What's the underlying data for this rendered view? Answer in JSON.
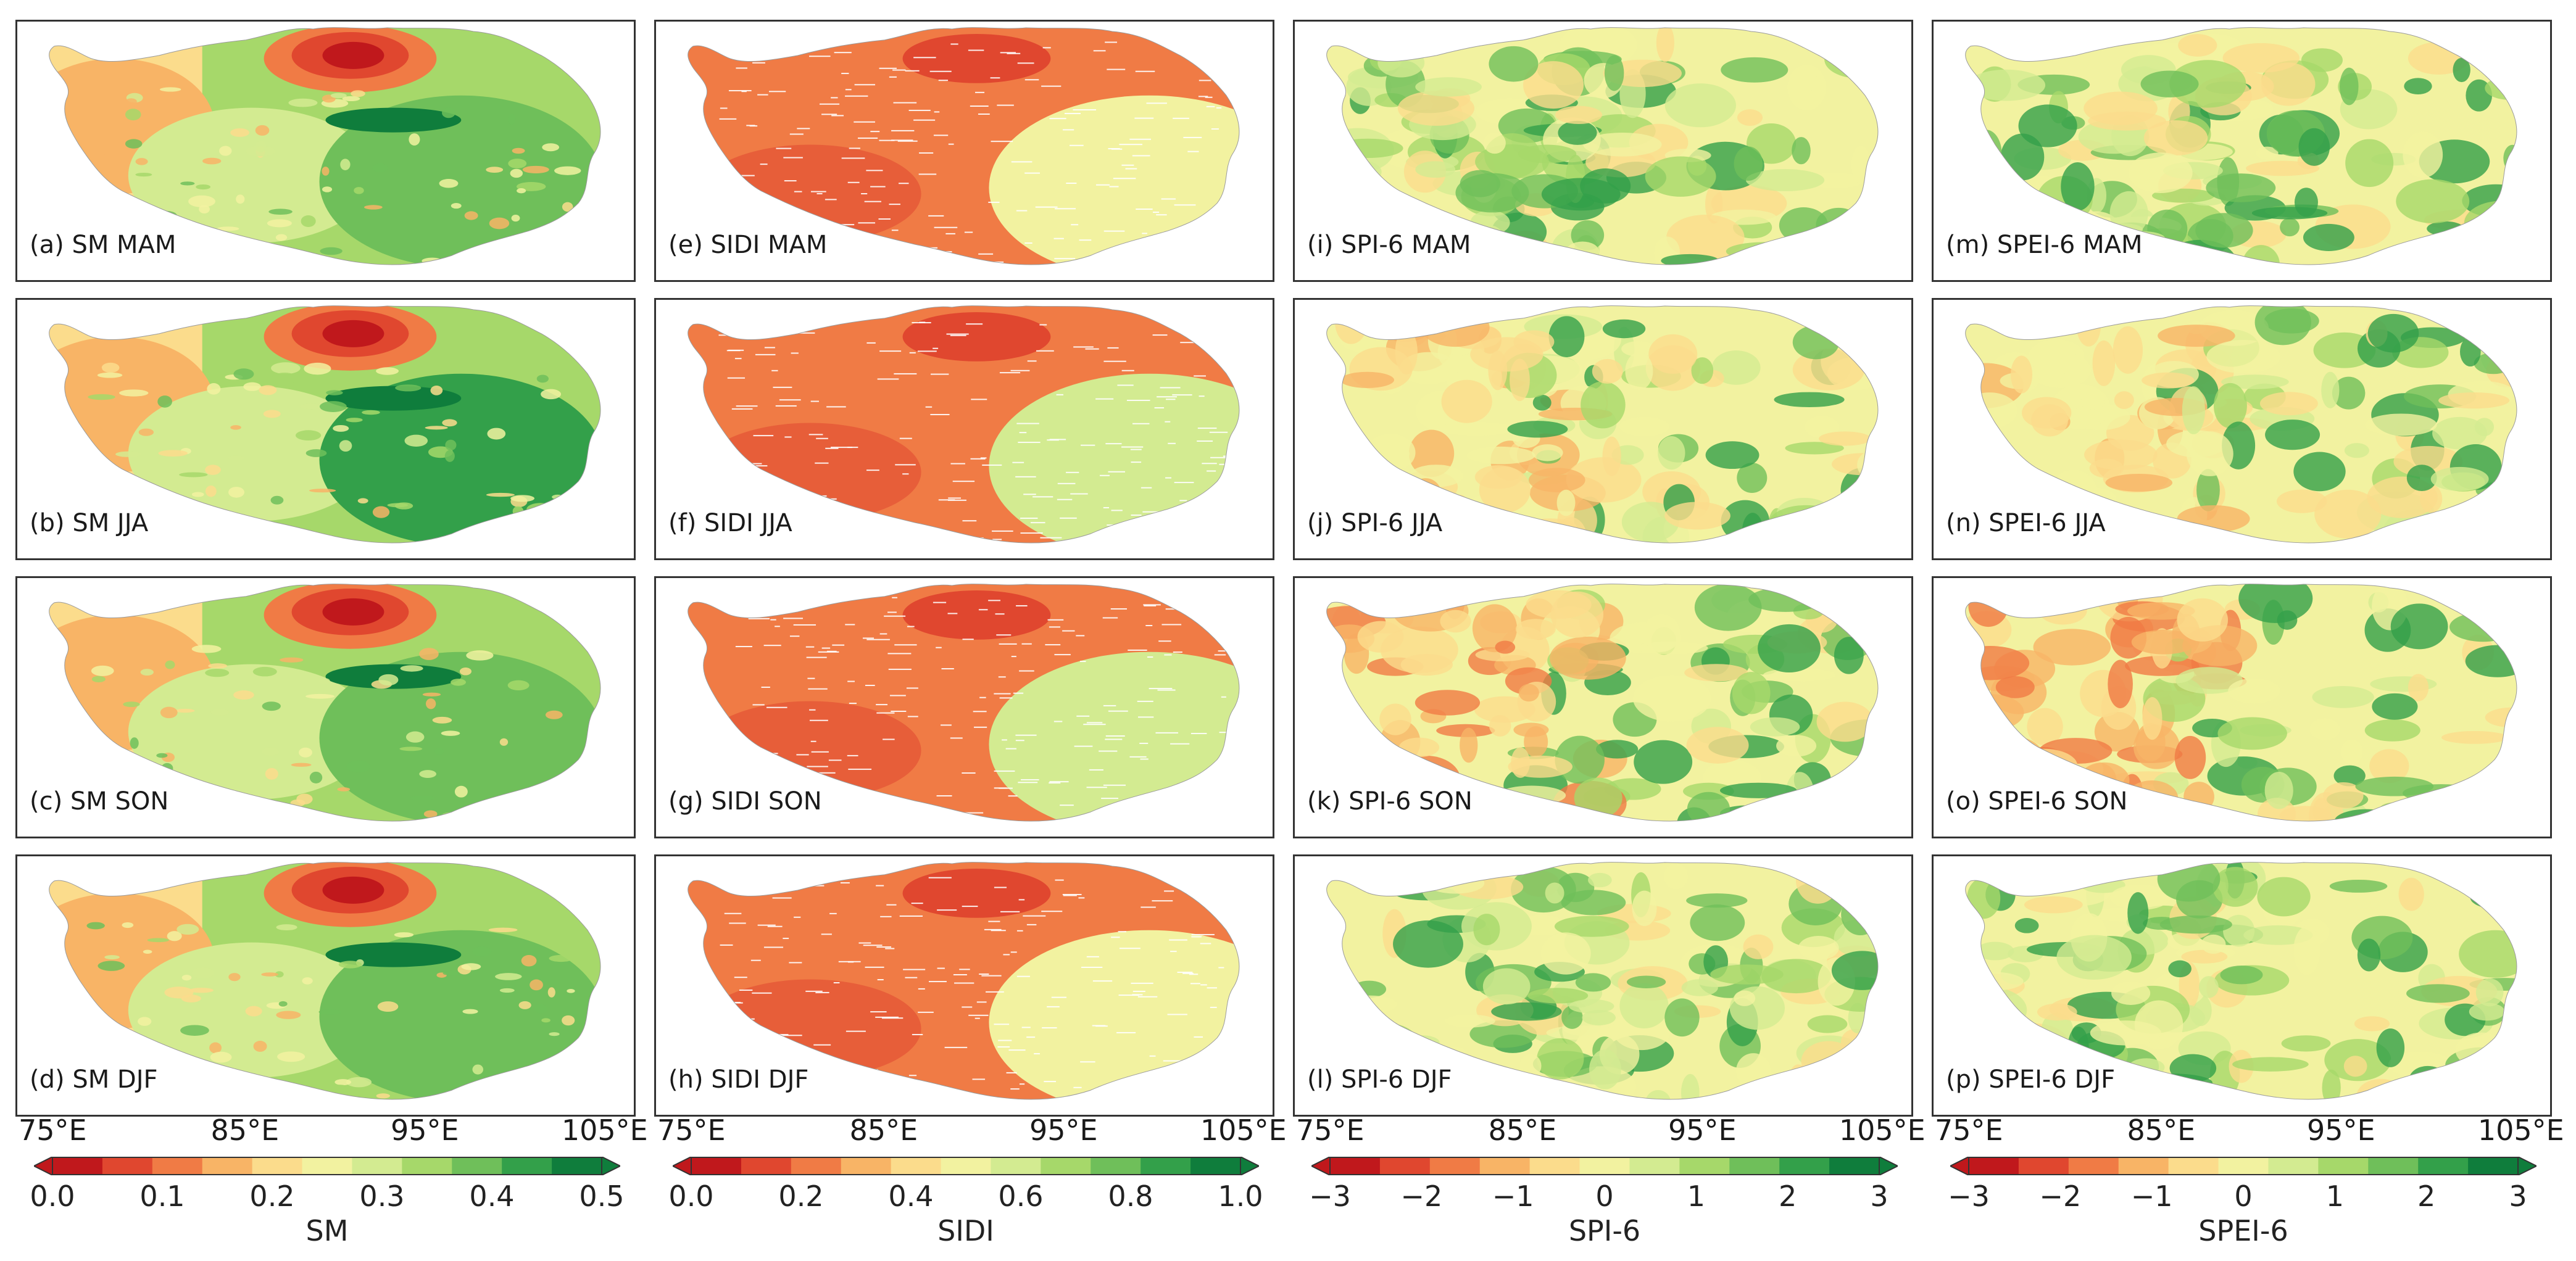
{
  "columns": [
    {
      "id": "sm",
      "panels": [
        "(a) SM MAM",
        "(b) SM JJA",
        "(c) SM SON",
        "(d) SM DJF"
      ],
      "lon_ticks": [
        "75°E",
        "85°E",
        "95°E",
        "105°E"
      ],
      "colorbar": {
        "label": "SM",
        "ticks": [
          "0.0",
          "0.1",
          "0.2",
          "0.3",
          "0.4",
          "0.5"
        ]
      }
    },
    {
      "id": "sidi",
      "panels": [
        "(e) SIDI MAM",
        "(f) SIDI JJA",
        "(g) SIDI SON",
        "(h) SIDI DJF"
      ],
      "lon_ticks": [
        "75°E",
        "85°E",
        "95°E",
        "105°E"
      ],
      "colorbar": {
        "label": "SIDI",
        "ticks": [
          "0.0",
          "0.2",
          "0.4",
          "0.6",
          "0.8",
          "1.0"
        ]
      }
    },
    {
      "id": "spi6",
      "panels": [
        "(i) SPI-6 MAM",
        "(j) SPI-6 JJA",
        "(k) SPI-6 SON",
        "(l) SPI-6 DJF"
      ],
      "lon_ticks": [
        "75°E",
        "85°E",
        "95°E",
        "105°E"
      ],
      "colorbar": {
        "label": "SPI-6",
        "ticks": [
          "−3",
          "−2",
          "−1",
          "0",
          "1",
          "2",
          "3"
        ]
      }
    },
    {
      "id": "spei6",
      "panels": [
        "(m) SPEI-6 MAM",
        "(n) SPEI-6 JJA",
        "(o) SPEI-6 SON",
        "(p) SPEI-6 DJF"
      ],
      "lon_ticks": [
        "75°E",
        "85°E",
        "95°E",
        "105°E"
      ],
      "colorbar": {
        "label": "SPEI-6",
        "ticks": [
          "−3",
          "−2",
          "−1",
          "0",
          "1",
          "2",
          "3"
        ]
      }
    }
  ],
  "palette": [
    "#c0181c",
    "#e0472f",
    "#f07b45",
    "#f8b466",
    "#fbdc8c",
    "#f2f2a0",
    "#d3eb91",
    "#a6d86a",
    "#6fbf5a",
    "#33a04a",
    "#0f7d3c"
  ]
}
